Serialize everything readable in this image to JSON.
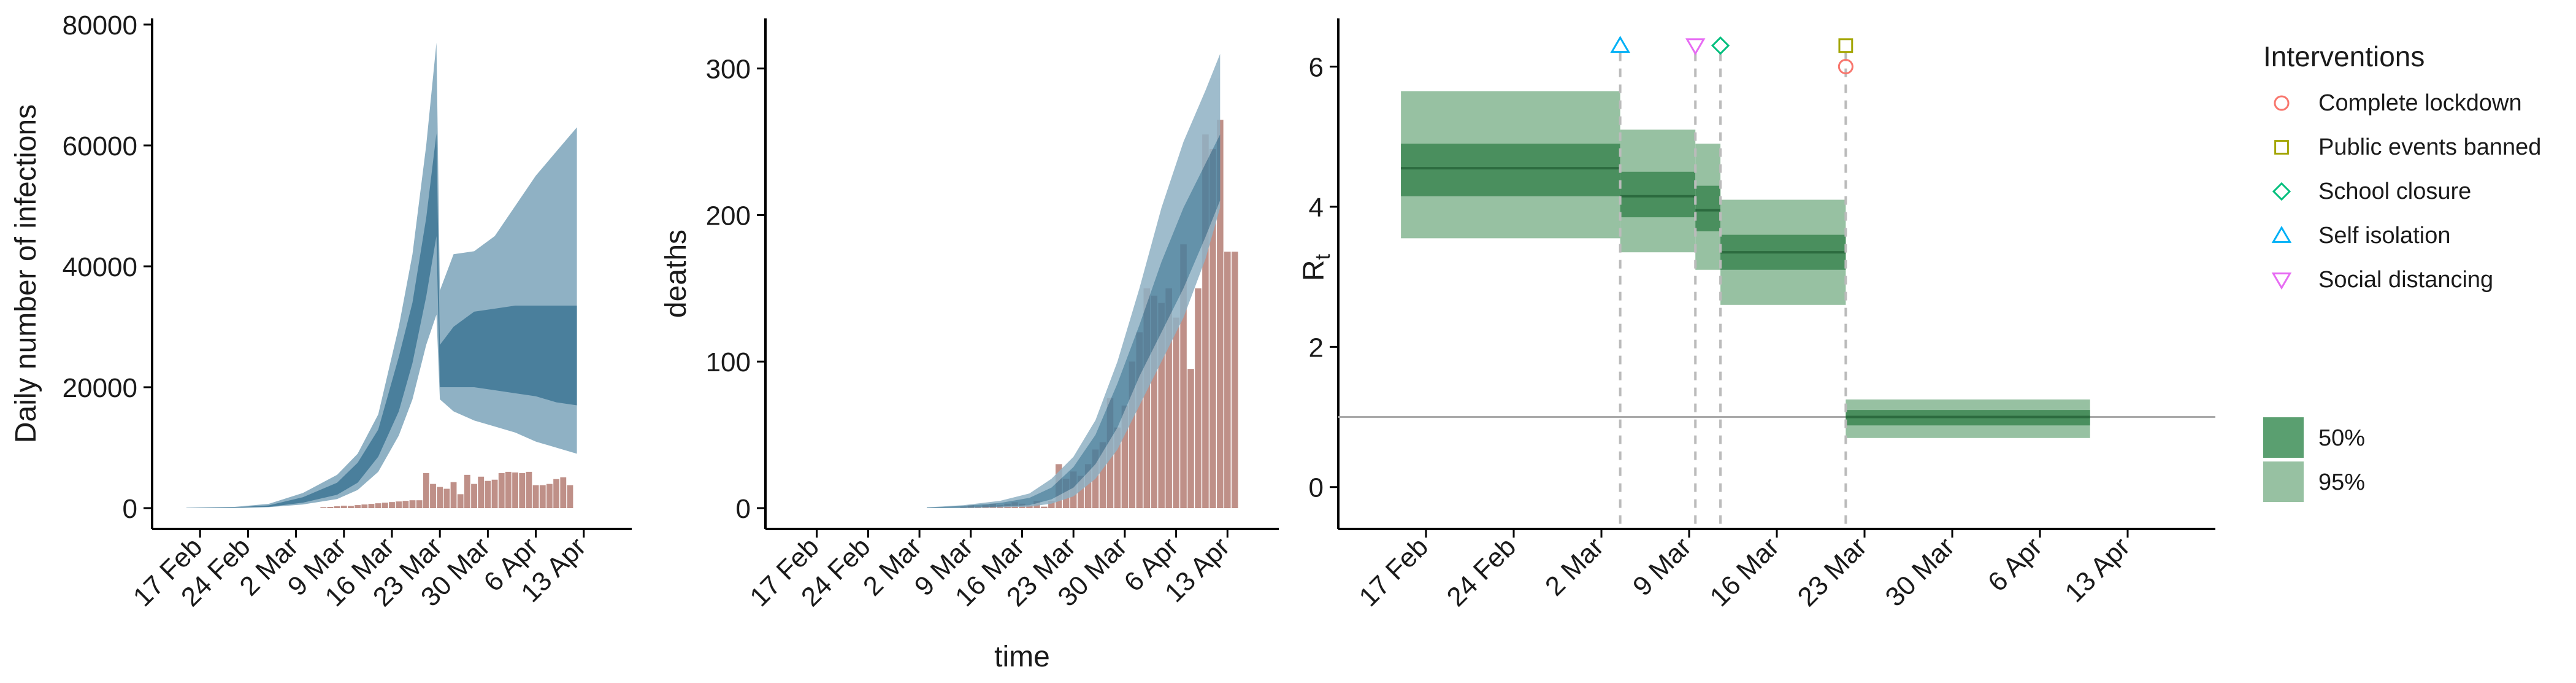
{
  "chart_data": [
    {
      "type": "area",
      "panel": "infections",
      "xlabel": "",
      "ylabel": "Daily number of infections",
      "ylim": [
        0,
        80000
      ],
      "yticks": [
        0,
        20000,
        40000,
        60000,
        80000
      ],
      "xlim_day": [
        -7,
        63
      ],
      "xtick_labels": [
        "17 Feb",
        "24 Feb",
        "2 Mar",
        "9 Mar",
        "16 Mar",
        "23 Mar",
        "30 Mar",
        "6 Apr",
        "13 Apr"
      ],
      "xtick_days": [
        0,
        7,
        14,
        21,
        28,
        35,
        42,
        49,
        56
      ],
      "grid": false,
      "series": [
        {
          "role": "band95",
          "points": [
            [
              -2,
              0,
              50
            ],
            [
              5,
              30,
              200
            ],
            [
              10,
              150,
              700
            ],
            [
              15,
              600,
              2500
            ],
            [
              20,
              1500,
              5500
            ],
            [
              23,
              3000,
              9000
            ],
            [
              26,
              6000,
              15500
            ],
            [
              29,
              12000,
              30000
            ],
            [
              31,
              18000,
              42000
            ],
            [
              33,
              27000,
              60000
            ],
            [
              34.5,
              32000,
              77000
            ],
            [
              35,
              18000,
              36000
            ],
            [
              37,
              16000,
              42000
            ],
            [
              40,
              14500,
              42500
            ],
            [
              43,
              13500,
              45000
            ],
            [
              46,
              12500,
              50000
            ],
            [
              49,
              11000,
              55000
            ],
            [
              52,
              10000,
              59000
            ],
            [
              55,
              9000,
              63000
            ]
          ]
        },
        {
          "role": "band50",
          "points": [
            [
              -2,
              0,
              20
            ],
            [
              5,
              40,
              120
            ],
            [
              10,
              200,
              450
            ],
            [
              15,
              900,
              1800
            ],
            [
              20,
              2200,
              4200
            ],
            [
              23,
              4200,
              7500
            ],
            [
              26,
              8500,
              13000
            ],
            [
              29,
              16000,
              25000
            ],
            [
              31,
              24000,
              34000
            ],
            [
              33,
              35000,
              48000
            ],
            [
              34.5,
              45000,
              62000
            ],
            [
              35,
              20000,
              27000
            ],
            [
              37,
              20000,
              30000
            ],
            [
              40,
              20000,
              32500
            ],
            [
              43,
              19500,
              33000
            ],
            [
              46,
              19000,
              33500
            ],
            [
              49,
              18500,
              33500
            ],
            [
              52,
              17500,
              33500
            ],
            [
              55,
              17000,
              33500
            ]
          ]
        }
      ],
      "bars": [
        {
          "day": 18,
          "value": 150
        },
        {
          "day": 19,
          "value": 200
        },
        {
          "day": 20,
          "value": 300
        },
        {
          "day": 21,
          "value": 400
        },
        {
          "day": 22,
          "value": 350
        },
        {
          "day": 23,
          "value": 500
        },
        {
          "day": 24,
          "value": 600
        },
        {
          "day": 25,
          "value": 700
        },
        {
          "day": 26,
          "value": 800
        },
        {
          "day": 27,
          "value": 900
        },
        {
          "day": 28,
          "value": 1000
        },
        {
          "day": 29,
          "value": 1100
        },
        {
          "day": 30,
          "value": 1200
        },
        {
          "day": 31,
          "value": 1300
        },
        {
          "day": 32,
          "value": 1300
        },
        {
          "day": 33,
          "value": 5800
        },
        {
          "day": 34,
          "value": 4000
        },
        {
          "day": 35,
          "value": 3500
        },
        {
          "day": 36,
          "value": 3200
        },
        {
          "day": 37,
          "value": 4300
        },
        {
          "day": 38,
          "value": 2300
        },
        {
          "day": 39,
          "value": 5500
        },
        {
          "day": 40,
          "value": 4000
        },
        {
          "day": 41,
          "value": 5200
        },
        {
          "day": 42,
          "value": 4500
        },
        {
          "day": 43,
          "value": 4700
        },
        {
          "day": 44,
          "value": 5800
        },
        {
          "day": 45,
          "value": 6000
        },
        {
          "day": 46,
          "value": 5900
        },
        {
          "day": 47,
          "value": 5800
        },
        {
          "day": 48,
          "value": 6000
        },
        {
          "day": 49,
          "value": 3800
        },
        {
          "day": 50,
          "value": 3800
        },
        {
          "day": 51,
          "value": 4000
        },
        {
          "day": 52,
          "value": 4800
        },
        {
          "day": 53,
          "value": 5100
        },
        {
          "day": 54,
          "value": 3800
        }
      ]
    },
    {
      "type": "area",
      "panel": "deaths",
      "xlabel": "time",
      "ylabel": "deaths",
      "ylim": [
        0,
        330
      ],
      "yticks": [
        0,
        100,
        200,
        300
      ],
      "xlim_day": [
        -7,
        63
      ],
      "xtick_labels": [
        "17 Feb",
        "24 Feb",
        "2 Mar",
        "9 Mar",
        "16 Mar",
        "23 Mar",
        "30 Mar",
        "6 Apr",
        "13 Apr"
      ],
      "xtick_days": [
        0,
        7,
        14,
        21,
        28,
        35,
        42,
        49,
        56
      ],
      "grid": false,
      "series": [
        {
          "role": "band95",
          "points": [
            [
              15,
              0,
              0.5
            ],
            [
              20,
              0,
              2
            ],
            [
              25,
              0.5,
              5
            ],
            [
              29,
              1,
              10
            ],
            [
              32,
              3,
              20
            ],
            [
              35,
              8,
              35
            ],
            [
              38,
              20,
              60
            ],
            [
              41,
              40,
              100
            ],
            [
              44,
              70,
              150
            ],
            [
              47,
              100,
              205
            ],
            [
              50,
              130,
              250
            ],
            [
              53,
              170,
              285
            ],
            [
              55,
              205,
              310
            ]
          ]
        },
        {
          "role": "band50",
          "points": [
            [
              15,
              0,
              0.3
            ],
            [
              20,
              0.3,
              1.5
            ],
            [
              25,
              1,
              3.5
            ],
            [
              29,
              2,
              7
            ],
            [
              32,
              6,
              14
            ],
            [
              35,
              14,
              28
            ],
            [
              38,
              30,
              50
            ],
            [
              41,
              55,
              85
            ],
            [
              44,
              90,
              125
            ],
            [
              47,
              120,
              168
            ],
            [
              50,
              150,
              205
            ],
            [
              53,
              185,
              235
            ],
            [
              55,
              210,
              255
            ]
          ]
        }
      ],
      "bars": [
        {
          "day": 20,
          "value": 1
        },
        {
          "day": 21,
          "value": 2
        },
        {
          "day": 22,
          "value": 1
        },
        {
          "day": 23,
          "value": 2
        },
        {
          "day": 24,
          "value": 3
        },
        {
          "day": 25,
          "value": 2
        },
        {
          "day": 26,
          "value": 3
        },
        {
          "day": 27,
          "value": 4
        },
        {
          "day": 28,
          "value": 3
        },
        {
          "day": 29,
          "value": 2
        },
        {
          "day": 30,
          "value": 5
        },
        {
          "day": 31,
          "value": 1
        },
        {
          "day": 32,
          "value": 5
        },
        {
          "day": 33,
          "value": 30
        },
        {
          "day": 34,
          "value": 20
        },
        {
          "day": 35,
          "value": 25
        },
        {
          "day": 36,
          "value": 22
        },
        {
          "day": 37,
          "value": 30
        },
        {
          "day": 38,
          "value": 40
        },
        {
          "day": 39,
          "value": 45
        },
        {
          "day": 40,
          "value": 75
        },
        {
          "day": 41,
          "value": 55
        },
        {
          "day": 42,
          "value": 70
        },
        {
          "day": 43,
          "value": 100
        },
        {
          "day": 44,
          "value": 120
        },
        {
          "day": 45,
          "value": 150
        },
        {
          "day": 46,
          "value": 145
        },
        {
          "day": 47,
          "value": 140
        },
        {
          "day": 48,
          "value": 150
        },
        {
          "day": 49,
          "value": 130
        },
        {
          "day": 50,
          "value": 180
        },
        {
          "day": 51,
          "value": 95
        },
        {
          "day": 52,
          "value": 150
        },
        {
          "day": 53,
          "value": 255
        },
        {
          "day": 54,
          "value": 245
        },
        {
          "day": 55,
          "value": 265
        },
        {
          "day": 56,
          "value": 175
        },
        {
          "day": 57,
          "value": 175
        }
      ]
    },
    {
      "type": "line",
      "panel": "rt",
      "xlabel": "",
      "ylabel": "R",
      "ylabel_subscript": "t",
      "ylim": [
        -0.3,
        6.6
      ],
      "yticks": [
        0,
        2,
        4,
        6
      ],
      "xlim_day": [
        -7,
        63
      ],
      "xtick_labels": [
        "17 Feb",
        "24 Feb",
        "2 Mar",
        "9 Mar",
        "16 Mar",
        "23 Mar",
        "30 Mar",
        "6 Apr",
        "13 Apr"
      ],
      "xtick_days": [
        0,
        7,
        14,
        21,
        28,
        35,
        42,
        49,
        56
      ],
      "grid": false,
      "reference_line": 1,
      "segments": [
        {
          "x0": -2,
          "x1": 15.5,
          "lo95": 3.55,
          "hi95": 5.65,
          "lo50": 4.15,
          "hi50": 4.9,
          "median": 4.55
        },
        {
          "x0": 15.5,
          "x1": 21.5,
          "lo95": 3.35,
          "hi95": 5.1,
          "lo50": 3.85,
          "hi50": 4.5,
          "median": 4.15
        },
        {
          "x0": 21.5,
          "x1": 23.5,
          "lo95": 3.1,
          "hi95": 4.9,
          "lo50": 3.65,
          "hi50": 4.3,
          "median": 3.95
        },
        {
          "x0": 23.5,
          "x1": 33.5,
          "lo95": 2.6,
          "hi95": 4.1,
          "lo50": 3.1,
          "hi50": 3.6,
          "median": 3.35
        },
        {
          "x0": 33.5,
          "x1": 53,
          "lo95": 0.7,
          "hi95": 1.25,
          "lo50": 0.88,
          "hi50": 1.1,
          "median": 1.0
        }
      ],
      "interventions": [
        {
          "name": "Self isolation",
          "day": 15.5,
          "marker": "triangle-up",
          "value": 6.3
        },
        {
          "name": "Social distancing",
          "day": 21.5,
          "marker": "triangle-down",
          "value": 6.3
        },
        {
          "name": "School closure",
          "day": 23.5,
          "marker": "diamond",
          "value": 6.3
        },
        {
          "name": "Public events banned",
          "day": 33.5,
          "marker": "square",
          "value": 6.3
        },
        {
          "name": "Complete lockdown",
          "day": 33.5,
          "marker": "circle",
          "value": 6.0
        }
      ],
      "legend_placement": "right"
    }
  ],
  "legend": {
    "interventions_title": "Interventions",
    "interventions": [
      {
        "label": "Complete lockdown",
        "marker": "circle",
        "color": "#f8766d"
      },
      {
        "label": "Public events banned",
        "marker": "square",
        "color": "#a3a500"
      },
      {
        "label": "School closure",
        "marker": "diamond",
        "color": "#00bf7d"
      },
      {
        "label": "Self isolation",
        "marker": "triangle-up",
        "color": "#00b0f6"
      },
      {
        "label": "Social distancing",
        "marker": "triangle-down",
        "color": "#e76bf3"
      }
    ],
    "ci": [
      {
        "label": "50%",
        "color": "#5a9f70"
      },
      {
        "label": "95%",
        "color": "#97c1a2"
      }
    ]
  },
  "colors": {
    "blue_light": "#8fb1c4",
    "blue_dark": "#4a7f9c",
    "bar": "#bc8a82",
    "green_light": "#97c1a2",
    "green_dark": "#4a8f5e",
    "green_line": "#2c6b3f",
    "ref_line": "#aaaaaa",
    "dash_line": "#bbbbbb"
  }
}
